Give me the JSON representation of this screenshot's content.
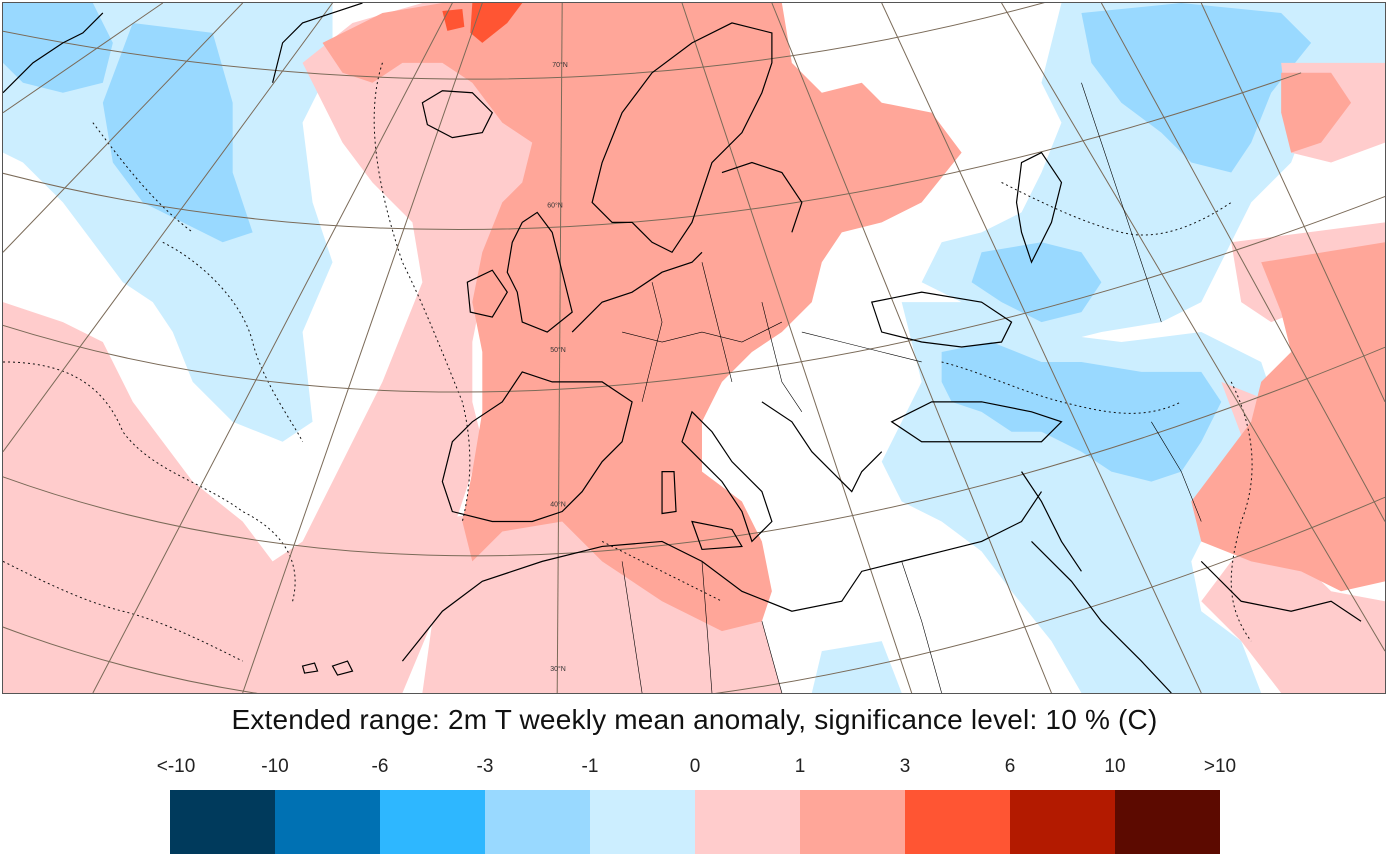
{
  "title": "Extended range: 2m T weekly mean anomaly, significance level: 10 % (C)",
  "legend": {
    "labels": [
      "<-10",
      "-10",
      "-6",
      "-3",
      "-1",
      "0",
      "1",
      "3",
      "6",
      "10",
      ">10"
    ],
    "colors": [
      "#003a5c",
      "#0071b3",
      "#2eb7ff",
      "#99d9ff",
      "#cceeff",
      "#ffcccc",
      "#ffa699",
      "#ff5533",
      "#b31a00",
      "#5c0a00"
    ]
  },
  "map": {
    "latitude_labels": [
      "70°N",
      "60°N",
      "50°N",
      "40°N",
      "30°N"
    ],
    "projection": "polar stereographic",
    "region": "Europe, North Atlantic, North Africa, Middle East"
  }
}
